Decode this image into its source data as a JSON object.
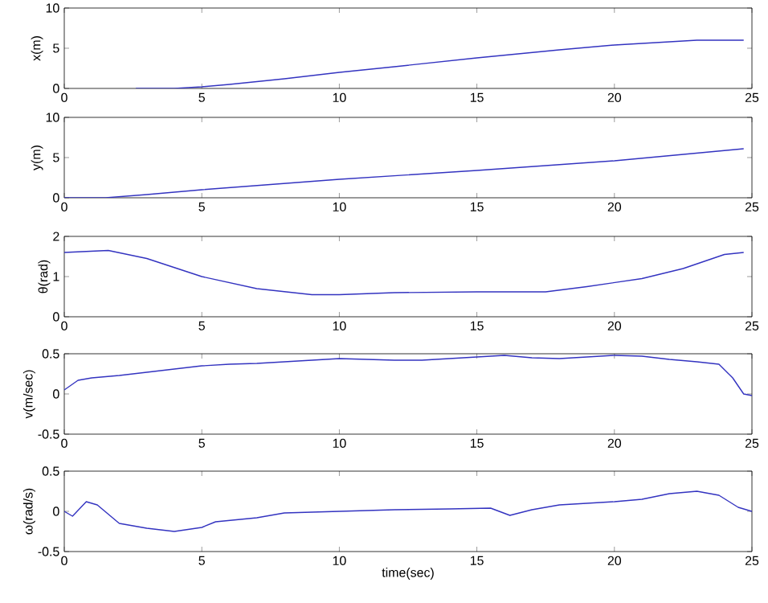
{
  "chart_data": [
    {
      "type": "line",
      "ylabel": "x(m)",
      "xlim": [
        0,
        25
      ],
      "ylim": [
        0,
        10
      ],
      "xticks": [
        0,
        5,
        10,
        15,
        20,
        25
      ],
      "yticks": [
        0,
        5,
        10
      ],
      "grid": false,
      "series": [
        {
          "color": "#3333c0",
          "x": [
            2.6,
            4,
            5,
            6,
            8,
            10,
            12,
            15,
            18,
            20,
            22,
            23,
            24.7
          ],
          "values": [
            0,
            0,
            0.2,
            0.5,
            1.2,
            2.0,
            2.7,
            3.8,
            4.8,
            5.4,
            5.8,
            6.0,
            6.0
          ]
        }
      ]
    },
    {
      "type": "line",
      "ylabel": "y(m)",
      "xlim": [
        0,
        25
      ],
      "ylim": [
        0,
        10
      ],
      "xticks": [
        0,
        5,
        10,
        15,
        20,
        25
      ],
      "yticks": [
        0,
        5,
        10
      ],
      "grid": false,
      "series": [
        {
          "color": "#3333c0",
          "x": [
            0,
            1.5,
            3,
            5,
            10,
            15,
            20,
            24.7
          ],
          "values": [
            0,
            0,
            0.4,
            1.0,
            2.3,
            3.4,
            4.6,
            6.1
          ]
        }
      ]
    },
    {
      "type": "line",
      "ylabel": "θ(rad)",
      "xlim": [
        0,
        25
      ],
      "ylim": [
        0,
        2
      ],
      "xticks": [
        0,
        5,
        10,
        15,
        20,
        25
      ],
      "yticks": [
        0,
        1,
        2
      ],
      "grid": false,
      "series": [
        {
          "color": "#3333c0",
          "x": [
            0,
            1.6,
            3,
            5,
            7,
            9,
            10,
            12,
            15,
            17.5,
            19,
            21,
            22.5,
            24,
            24.7
          ],
          "values": [
            1.6,
            1.65,
            1.45,
            1.0,
            0.7,
            0.55,
            0.55,
            0.6,
            0.62,
            0.62,
            0.75,
            0.95,
            1.2,
            1.55,
            1.6
          ]
        }
      ]
    },
    {
      "type": "line",
      "ylabel": "v(m/sec)",
      "xlim": [
        0,
        25
      ],
      "ylim": [
        -0.5,
        0.5
      ],
      "xticks": [
        0,
        5,
        10,
        15,
        20,
        25
      ],
      "yticks": [
        -0.5,
        0,
        0.5
      ],
      "grid": false,
      "series": [
        {
          "color": "#3333c0",
          "x": [
            0,
            0.5,
            1,
            2,
            3,
            4,
            5,
            6,
            7,
            8,
            9,
            10,
            11,
            12,
            13,
            14,
            15,
            16,
            17,
            18,
            19,
            20,
            21,
            22,
            23,
            23.8,
            24.3,
            24.7,
            25
          ],
          "values": [
            0.05,
            0.17,
            0.2,
            0.23,
            0.27,
            0.31,
            0.35,
            0.37,
            0.38,
            0.4,
            0.42,
            0.44,
            0.43,
            0.42,
            0.42,
            0.44,
            0.46,
            0.48,
            0.45,
            0.44,
            0.46,
            0.48,
            0.47,
            0.43,
            0.4,
            0.37,
            0.2,
            0.0,
            -0.02
          ]
        }
      ]
    },
    {
      "type": "line",
      "ylabel": "ω(rad/s)",
      "xlabel": "time(sec)",
      "xlim": [
        0,
        25
      ],
      "ylim": [
        -0.5,
        0.5
      ],
      "xticks": [
        0,
        5,
        10,
        15,
        20,
        25
      ],
      "yticks": [
        -0.5,
        0,
        0.5
      ],
      "grid": false,
      "series": [
        {
          "color": "#3333c0",
          "x": [
            0,
            0.3,
            0.8,
            1.2,
            2,
            3,
            4,
            5,
            5.5,
            7,
            8,
            10,
            12,
            14,
            15.5,
            16.2,
            17,
            18,
            20,
            21,
            22,
            23,
            23.8,
            24.5,
            25
          ],
          "values": [
            0,
            -0.06,
            0.12,
            0.08,
            -0.15,
            -0.21,
            -0.25,
            -0.2,
            -0.13,
            -0.08,
            -0.02,
            0.0,
            0.02,
            0.03,
            0.04,
            -0.05,
            0.02,
            0.08,
            0.12,
            0.15,
            0.22,
            0.25,
            0.2,
            0.05,
            0
          ]
        }
      ]
    }
  ]
}
